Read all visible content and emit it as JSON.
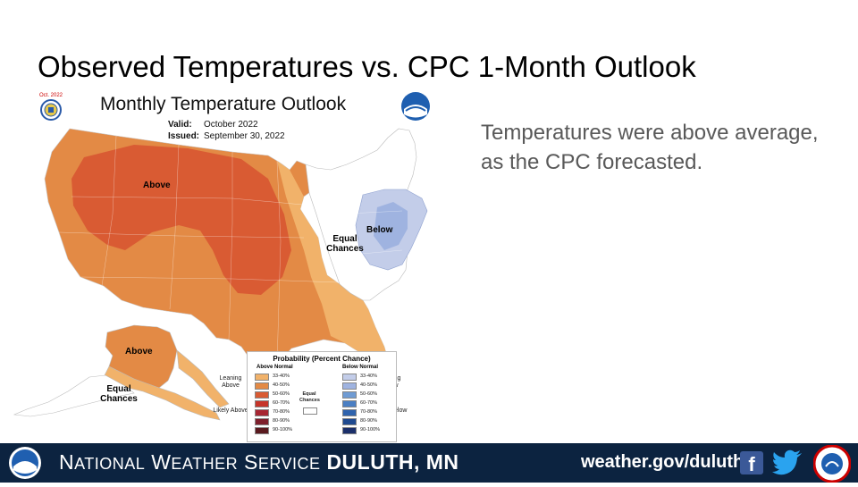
{
  "slide": {
    "title": "Observed Temperatures vs. CPC 1-Month Outlook",
    "body": "Temperatures were above average, as the CPC forecasted."
  },
  "map": {
    "title": "Monthly Temperature Outlook",
    "valid_label": "Valid:",
    "valid_value": "October 2022",
    "issued_label": "Issued:",
    "issued_value": "September 30, 2022",
    "seal_label": "Oct. 2022",
    "regions": {
      "above_conus": "Above",
      "below_east": "Below",
      "equal_east": "Equal Chances",
      "above_alaska": "Above",
      "equal_alaska": "Equal Chances"
    },
    "legend": {
      "title": "Probability (Percent Chance)",
      "above_header": "Above Normal",
      "below_header": "Below Normal",
      "equal_label": "Equal Chances",
      "leaning_above": "Leaning Above",
      "likely_above": "Likely Above",
      "leaning_below": "Leaning Below",
      "likely_below": "Likely Below",
      "above_bins": [
        {
          "label": "33-40%",
          "color": "#f1b26a"
        },
        {
          "label": "40-50%",
          "color": "#e38a45"
        },
        {
          "label": "50-60%",
          "color": "#d95b33"
        },
        {
          "label": "60-70%",
          "color": "#c6352a"
        },
        {
          "label": "70-80%",
          "color": "#a72632"
        },
        {
          "label": "80-90%",
          "color": "#7e1f2c"
        },
        {
          "label": "90-100%",
          "color": "#5a1a1f"
        }
      ],
      "below_bins": [
        {
          "label": "33-40%",
          "color": "#c3cde9"
        },
        {
          "label": "40-50%",
          "color": "#9fb3e0"
        },
        {
          "label": "50-60%",
          "color": "#6f9bd3"
        },
        {
          "label": "60-70%",
          "color": "#4b7fc3"
        },
        {
          "label": "70-80%",
          "color": "#2f63ad"
        },
        {
          "label": "80-90%",
          "color": "#1f4a90"
        },
        {
          "label": "90-100%",
          "color": "#1b2f6a"
        }
      ]
    }
  },
  "footer": {
    "org_n": "N",
    "org_ational": "ATIONAL",
    "org_w": "W",
    "org_eather": "EATHER",
    "org_s": "S",
    "org_ervice": "ERVICE",
    "office": "DULUTH, MN",
    "url": "weather.gov/duluth",
    "background": "#0c2340"
  }
}
